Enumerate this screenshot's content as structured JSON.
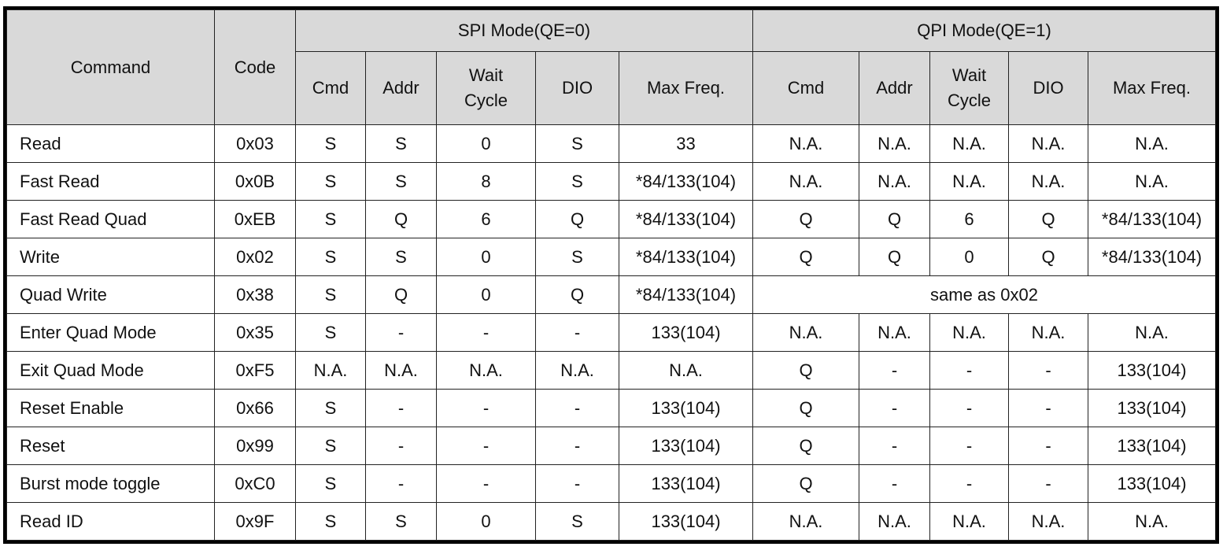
{
  "header": {
    "command": "Command",
    "code": "Code",
    "spi_group": "SPI Mode(QE=0)",
    "qpi_group": "QPI Mode(QE=1)",
    "sub": [
      "Cmd",
      "Addr",
      "Wait Cycle",
      "DIO",
      "Max Freq."
    ]
  },
  "rows": [
    {
      "command": "Read",
      "code": "0x03",
      "spi": [
        "S",
        "S",
        "0",
        "S",
        "33"
      ],
      "qpi": [
        "N.A.",
        "N.A.",
        "N.A.",
        "N.A.",
        "N.A."
      ]
    },
    {
      "command": "Fast Read",
      "code": "0x0B",
      "spi": [
        "S",
        "S",
        "8",
        "S",
        "*84/133(104)"
      ],
      "qpi": [
        "N.A.",
        "N.A.",
        "N.A.",
        "N.A.",
        "N.A."
      ]
    },
    {
      "command": "Fast Read Quad",
      "code": "0xEB",
      "spi": [
        "S",
        "Q",
        "6",
        "Q",
        "*84/133(104)"
      ],
      "qpi": [
        "Q",
        "Q",
        "6",
        "Q",
        "*84/133(104)"
      ]
    },
    {
      "command": "Write",
      "code": "0x02",
      "spi": [
        "S",
        "S",
        "0",
        "S",
        "*84/133(104)"
      ],
      "qpi": [
        "Q",
        "Q",
        "0",
        "Q",
        "*84/133(104)"
      ]
    },
    {
      "command": "Quad Write",
      "code": "0x38",
      "spi": [
        "S",
        "Q",
        "0",
        "Q",
        "*84/133(104)"
      ],
      "qpi_merged": "same as 0x02"
    },
    {
      "command": "Enter Quad Mode",
      "code": "0x35",
      "spi": [
        "S",
        "-",
        "-",
        "-",
        "133(104)"
      ],
      "qpi": [
        "N.A.",
        "N.A.",
        "N.A.",
        "N.A.",
        "N.A."
      ]
    },
    {
      "command": "Exit Quad Mode",
      "code": "0xF5",
      "spi": [
        "N.A.",
        "N.A.",
        "N.A.",
        "N.A.",
        "N.A."
      ],
      "qpi": [
        "Q",
        "-",
        "-",
        "-",
        "133(104)"
      ]
    },
    {
      "command": "Reset Enable",
      "code": "0x66",
      "spi": [
        "S",
        "-",
        "-",
        "-",
        "133(104)"
      ],
      "qpi": [
        "Q",
        "-",
        "-",
        "-",
        "133(104)"
      ]
    },
    {
      "command": "Reset",
      "code": "0x99",
      "spi": [
        "S",
        "-",
        "-",
        "-",
        "133(104)"
      ],
      "qpi": [
        "Q",
        "-",
        "-",
        "-",
        "133(104)"
      ]
    },
    {
      "command": "Burst mode toggle",
      "code": "0xC0",
      "spi": [
        "S",
        "-",
        "-",
        "-",
        "133(104)"
      ],
      "qpi": [
        "Q",
        "-",
        "-",
        "-",
        "133(104)"
      ]
    },
    {
      "command": "Read ID",
      "code": "0x9F",
      "spi": [
        "S",
        "S",
        "0",
        "S",
        "133(104)"
      ],
      "qpi": [
        "N.A.",
        "N.A.",
        "N.A.",
        "N.A.",
        "N.A."
      ]
    }
  ]
}
